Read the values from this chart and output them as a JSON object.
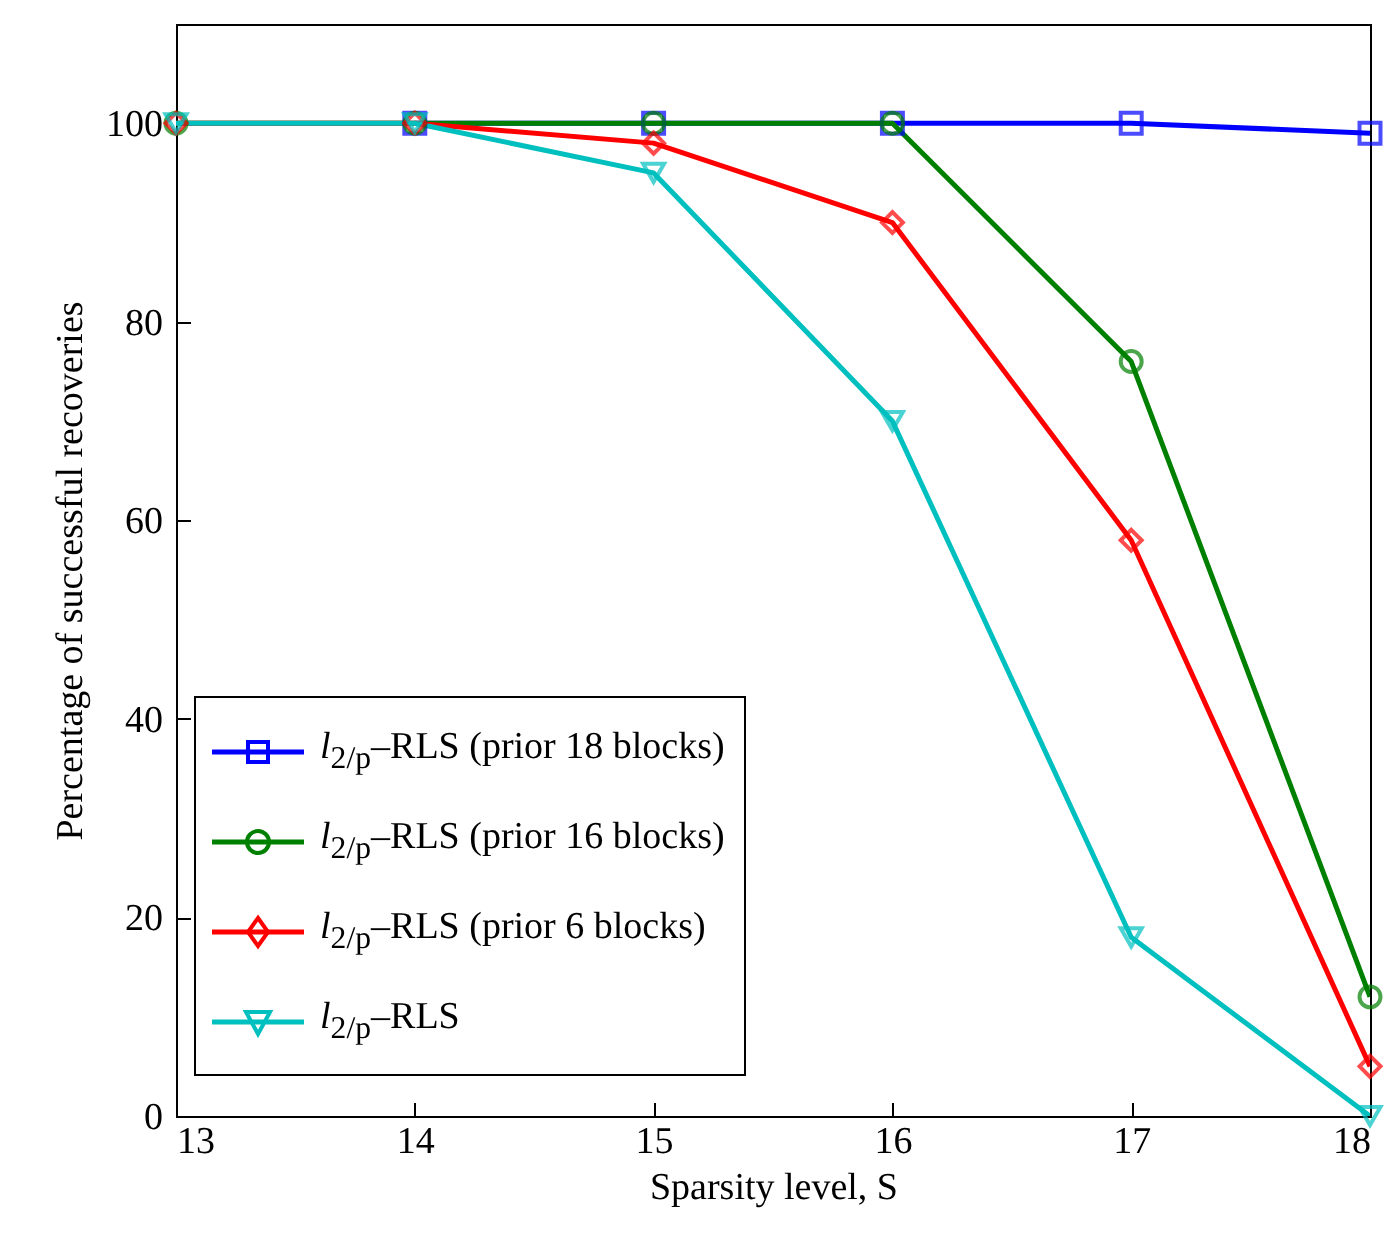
{
  "chart_data": {
    "type": "line",
    "xlabel": "Sparsity level, S",
    "ylabel": "Percentage of successful recoveries",
    "x": [
      13,
      14,
      15,
      16,
      17,
      18
    ],
    "series": [
      {
        "name": "l$_{2/p}$–RLS (prior 18 blocks)",
        "color": "#0000ff",
        "marker": "square",
        "values": [
          null,
          100,
          100,
          100,
          100,
          99
        ]
      },
      {
        "name": "l$_{2/p}$–RLS (prior 16 blocks)",
        "color": "#008000",
        "marker": "circle",
        "values": [
          100,
          100,
          100,
          100,
          76,
          12
        ]
      },
      {
        "name": "l$_{2/p}$–RLS (prior 6 blocks)",
        "color": "#ff0000",
        "marker": "diamond",
        "values": [
          100,
          100,
          98,
          90,
          58,
          5
        ]
      },
      {
        "name": "l$_{2/p}$–RLS",
        "color": "#00bfbf",
        "marker": "triangle",
        "values": [
          100,
          100,
          95,
          70,
          18,
          0
        ]
      }
    ],
    "xlim": [
      13,
      18
    ],
    "xticks": [
      13,
      14,
      15,
      16,
      17,
      18
    ],
    "ylim": [
      0,
      110
    ],
    "yticks": [
      0,
      20,
      40,
      60,
      80,
      100
    ],
    "grid": false,
    "legend": "bottom left",
    "line_style": "solid"
  }
}
